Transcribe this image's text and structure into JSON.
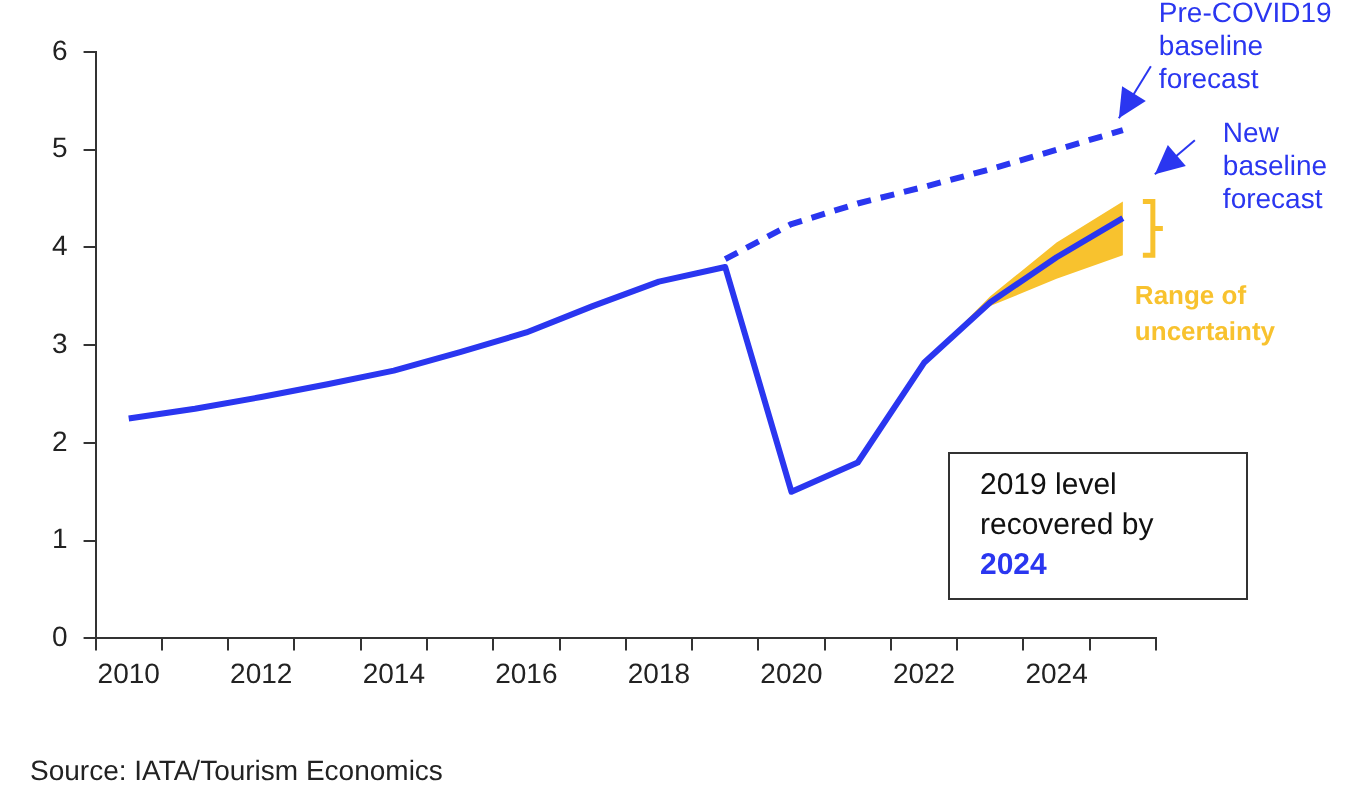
{
  "chart_data": {
    "type": "line",
    "categories": [
      "2010",
      null,
      "2012",
      null,
      "2014",
      null,
      "2016",
      null,
      "2018",
      null,
      "2020",
      null,
      "2022",
      null,
      "2024",
      null
    ],
    "ylim": [
      0,
      6
    ],
    "yticks": [
      0,
      1,
      2,
      3,
      4,
      5,
      6
    ],
    "grid": false,
    "legend": "right",
    "marker": "none",
    "series": [
      {
        "name": "Pre-COVID19 baseline forecast",
        "color": "#2a36f0",
        "line_style": "dashed",
        "values": [
          null,
          null,
          null,
          null,
          null,
          null,
          null,
          null,
          null,
          3.88,
          4.24,
          4.45,
          4.62,
          4.8,
          5.0,
          5.2
        ]
      },
      {
        "name": "New baseline forecast",
        "color": "#2a36f0",
        "line_style": "solid",
        "values": [
          2.25,
          2.35,
          2.47,
          2.6,
          2.74,
          2.93,
          3.13,
          3.4,
          3.65,
          3.8,
          1.5,
          1.8,
          2.82,
          3.44,
          3.9,
          4.3
        ],
        "lower": [
          null,
          null,
          null,
          null,
          null,
          null,
          null,
          null,
          null,
          null,
          null,
          null,
          2.82,
          3.4,
          3.68,
          3.92
        ],
        "upper": [
          null,
          null,
          null,
          null,
          null,
          null,
          null,
          null,
          null,
          null,
          null,
          null,
          2.82,
          3.5,
          4.05,
          4.47
        ]
      }
    ],
    "annotations": [
      "Range of uncertainty",
      "2019 level recovered by 2024",
      "Source: IATA/Tourism Economics"
    ]
  }
}
